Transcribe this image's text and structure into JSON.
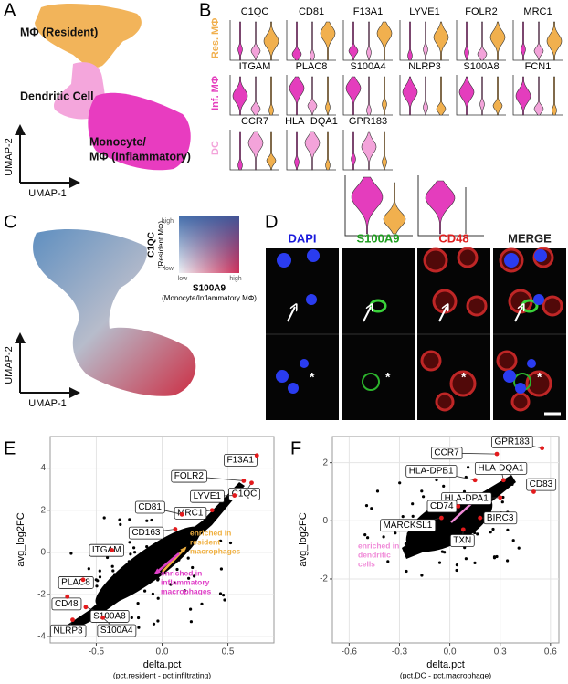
{
  "figure": {
    "A": {
      "panel": "A",
      "clusters": [
        "MΦ (Resident)",
        "Dendritic Cell",
        "Monocyte/",
        "MΦ (Inflammatory)"
      ],
      "x_axis": "UMAP-1",
      "y_axis": "UMAP-2"
    },
    "B": {
      "panel": "B",
      "rows": [
        {
          "label": "Res. MΦ",
          "genes": [
            "C1QC",
            "CD81",
            "F13A1",
            "LYVE1",
            "FOLR2",
            "MRC1"
          ]
        },
        {
          "label": "Inf. MΦ",
          "genes": [
            "ITGAM",
            "PLAC8",
            "S100A4",
            "NLRP3",
            "S100A8",
            "FCN1"
          ]
        },
        {
          "label": "DC",
          "genes": [
            "CCR7",
            "HLA−DQA1",
            "GPR183"
          ]
        }
      ]
    },
    "C": {
      "panel": "C",
      "legend": {
        "high_y": "high",
        "low_y": "low",
        "low_x": "low",
        "high_x": "high",
        "y_gene": "C1QC",
        "y_note": "(Resident MΦ)",
        "x_gene": "S100A9",
        "x_note": "(Monocyte/Inflammatory MΦ)"
      },
      "x_axis": "UMAP-1",
      "y_axis": "UMAP-2"
    },
    "D": {
      "panel": "D",
      "channels": [
        "DAPI",
        "S100A9",
        "CD48",
        "MERGE"
      ],
      "channel_colors": [
        "#1a1adc",
        "#1e9e1e",
        "#e02020",
        "#222222"
      ],
      "marker": "*"
    }
  },
  "chart_data": [
    {
      "type": "scatter",
      "panel": "E",
      "xlabel": "delta.pct",
      "xlabel_note": "(pct.resident - pct.infiltrating)",
      "ylabel": "avg_log2FC",
      "xlim": [
        -0.85,
        0.85
      ],
      "ylim": [
        -4.3,
        5.5
      ],
      "xticks": [
        -0.5,
        {
          "value": 0,
          "label": "0.0"
        },
        0.5
      ],
      "yticks": [
        -4,
        -2,
        0,
        2,
        4
      ],
      "grid": true,
      "series": [
        {
          "color": "#e31a1c",
          "labels": [
            "F13A1",
            "FOLR2",
            "C1QC",
            "LYVE1",
            "MRC1",
            "CD81",
            "CD163",
            "ITGAM",
            "PLAC8",
            "CD48",
            "S100A8",
            "NLRP3",
            "S100A4"
          ],
          "x": [
            0.72,
            0.62,
            0.68,
            0.55,
            0.38,
            0.15,
            0.1,
            -0.38,
            -0.6,
            -0.72,
            -0.58,
            -0.68,
            -0.45
          ],
          "values": [
            4.6,
            3.4,
            3.3,
            2.7,
            2.0,
            1.8,
            1.1,
            0.1,
            -1.3,
            -2.1,
            -2.6,
            -3.2,
            -3.1
          ]
        }
      ],
      "annotations": [
        {
          "lines": [
            "enriched in",
            "resident",
            "macrophages"
          ],
          "color": "#f0b040"
        },
        {
          "lines": [
            "enriched in",
            "inflammatory",
            "macrophages"
          ],
          "color": "#e040c8"
        }
      ]
    },
    {
      "type": "scatter",
      "panel": "F",
      "xlabel": "delta.pct",
      "xlabel_note": "(pct.DC - pct.macrophage)",
      "ylabel": "avg_log2FC",
      "xlim": [
        -0.7,
        0.65
      ],
      "ylim": [
        -4.2,
        2.9
      ],
      "xticks": [
        -0.6,
        -0.3,
        {
          "value": 0,
          "label": "0.0"
        },
        0.3,
        0.6
      ],
      "yticks": [
        -2,
        0,
        2
      ],
      "grid": true,
      "series": [
        {
          "color": "#e31a1c",
          "labels": [
            "GPR183",
            "CCR7",
            "HLA-DPB1",
            "HLA-DQA1",
            "CD83",
            "HLA-DPA1",
            "CD74",
            "MARCKSL1",
            "BIRC3",
            "TXN"
          ],
          "x": [
            0.55,
            0.28,
            0.15,
            0.32,
            0.5,
            0.3,
            0.05,
            -0.05,
            0.18,
            0.08
          ],
          "values": [
            2.5,
            2.3,
            1.4,
            1.4,
            1.0,
            0.8,
            0.5,
            0.1,
            0.1,
            -0.3
          ]
        }
      ],
      "annotations": [
        {
          "lines": [
            "enriched in",
            "dendritic",
            "cells"
          ],
          "color": "#f08ad8"
        }
      ]
    }
  ]
}
